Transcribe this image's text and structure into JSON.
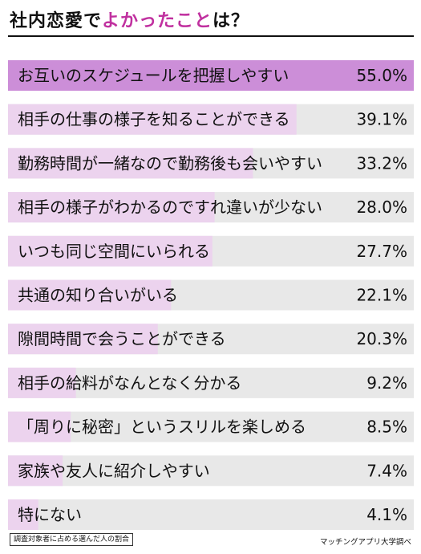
{
  "title": {
    "part1": "社内恋愛で",
    "highlight": "よかったこと",
    "part2": "は？"
  },
  "colors": {
    "top_bar": "#cc8ed8",
    "bar": "#ecd3ee",
    "track": "#e8e8e8",
    "highlight_text": "#c0309f"
  },
  "chart_data": {
    "type": "bar",
    "orientation": "horizontal",
    "title": "社内恋愛でよかったことは？",
    "categories": [
      "お互いのスケジュールを把握しやすい",
      "相手の仕事の様子を知ることができる",
      "勤務時間が一緒なので勤務後も会いやすい",
      "相手の様子がわかるのですれ違いが少ない",
      "いつも同じ空間にいられる",
      "共通の知り合いがいる",
      "隙間時間で会うことができる",
      "相手の給料がなんとなく分かる",
      "「周りに秘密」というスリルを楽しめる",
      "家族や友人に紹介しやすい",
      "特にない"
    ],
    "values": [
      55.0,
      39.1,
      33.2,
      28.0,
      27.7,
      22.1,
      20.3,
      9.2,
      8.5,
      7.4,
      4.1
    ],
    "value_labels": [
      "55.0%",
      "39.1%",
      "33.2%",
      "28.0%",
      "27.7%",
      "22.1%",
      "20.3%",
      "9.2%",
      "8.5%",
      "7.4%",
      "4.1%"
    ],
    "xlim": [
      0,
      55.0
    ],
    "unit": "%"
  },
  "footer": {
    "note": "調査対象者に占める選んだ人の割合",
    "source": "マッチングアプリ大学調べ"
  }
}
